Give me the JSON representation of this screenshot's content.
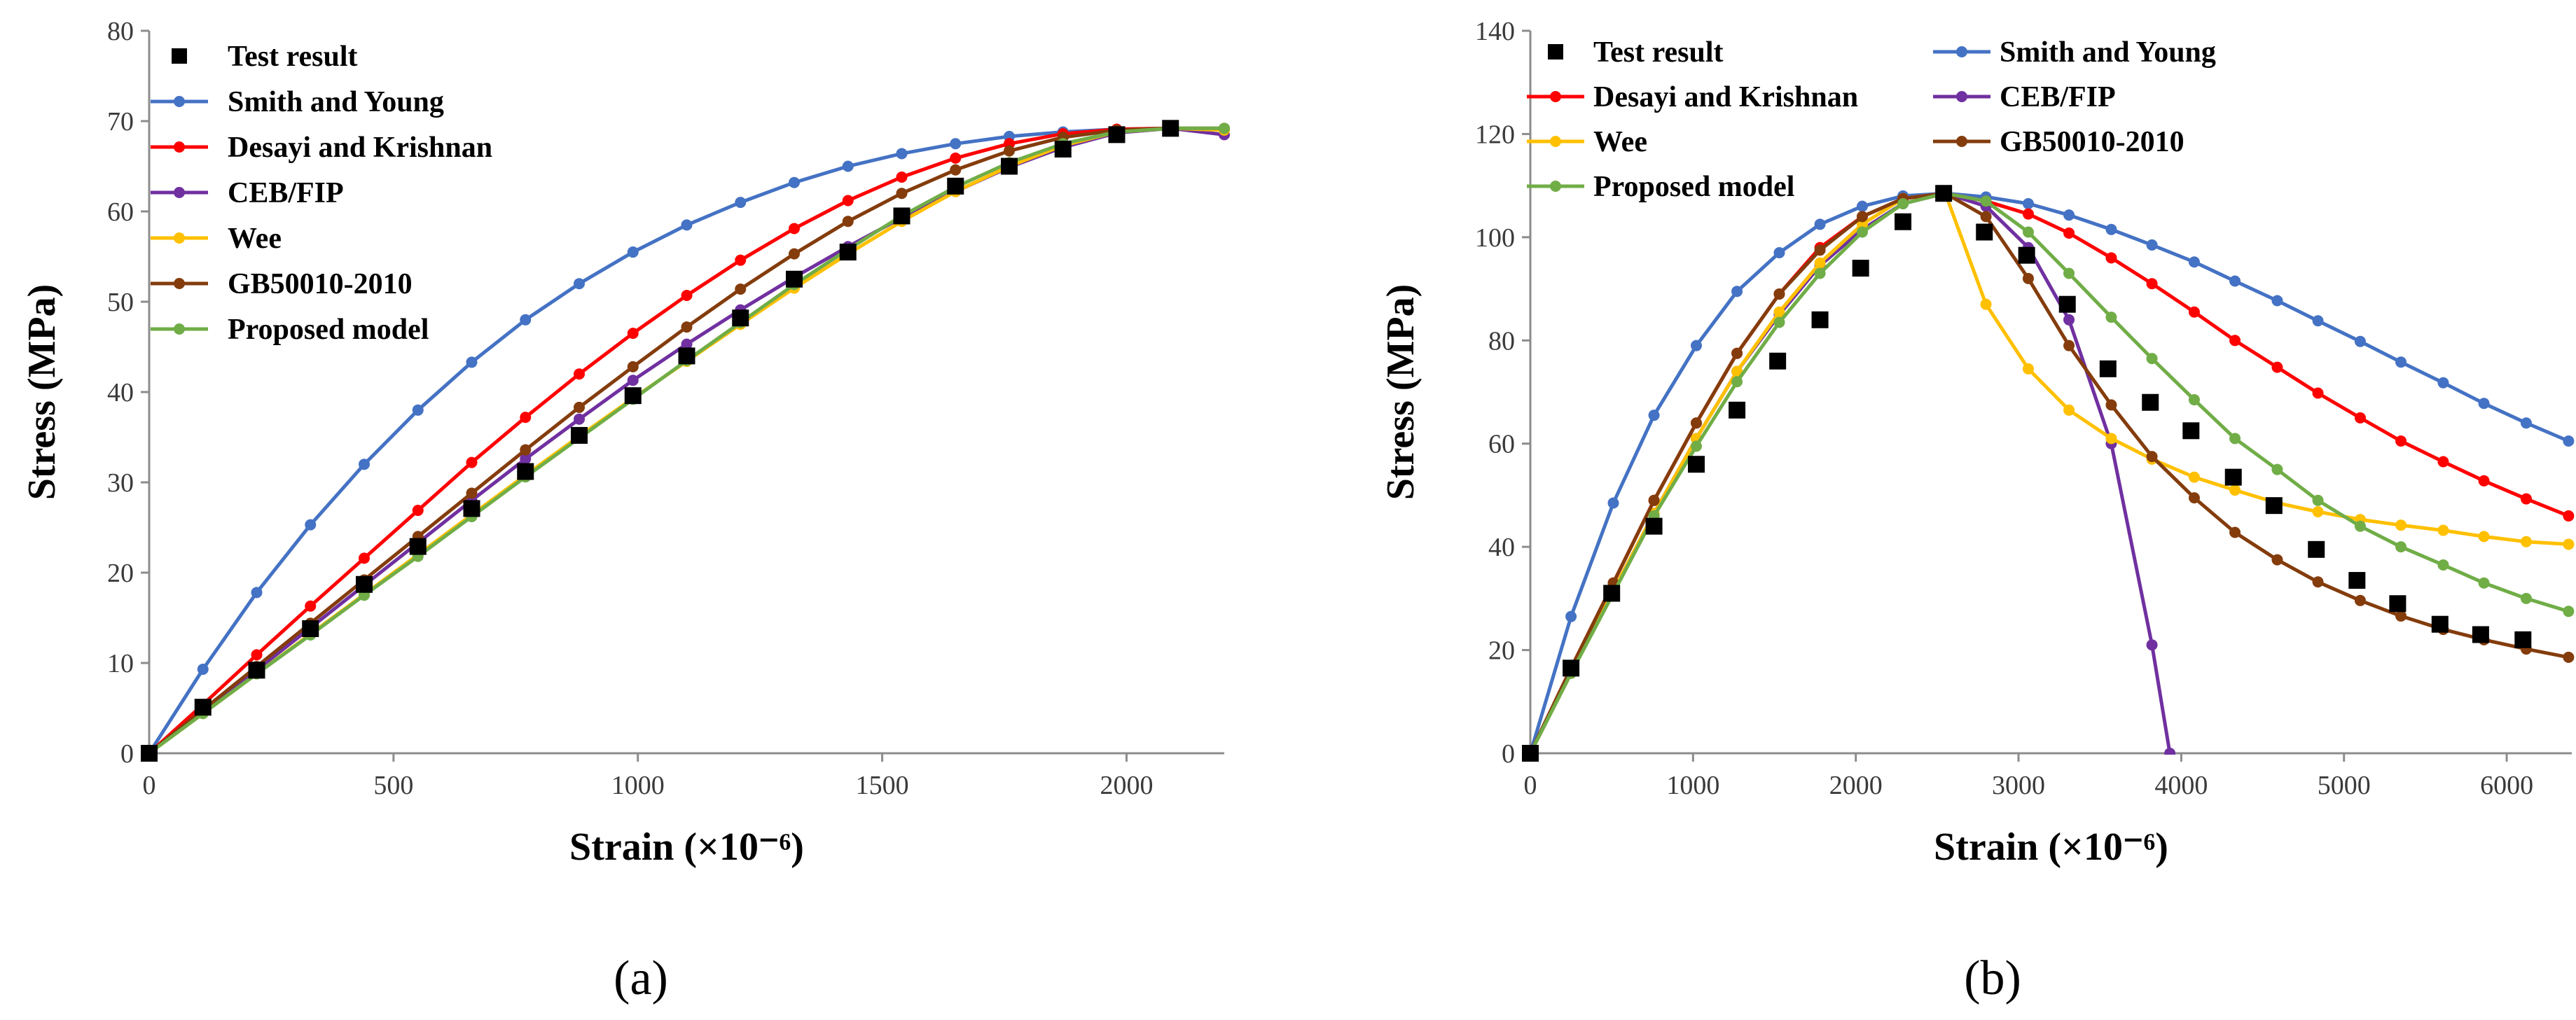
{
  "chart_data": [
    {
      "type": "line",
      "panel_label": "(a)",
      "xlabel": "Strain (×10⁻⁶)",
      "ylabel": "Stress (MPa)",
      "xlim": [
        0,
        2200
      ],
      "ylim": [
        0,
        80
      ],
      "xticks": [
        0,
        500,
        1000,
        1500,
        2000
      ],
      "yticks": [
        0,
        10,
        20,
        30,
        40,
        50,
        60,
        70,
        80
      ],
      "grid": false,
      "legend_position": "top-left",
      "test_result": {
        "name": "Test result",
        "x": [
          0,
          110,
          220,
          330,
          440,
          550,
          660,
          770,
          880,
          990,
          1100,
          1210,
          1320,
          1430,
          1540,
          1650,
          1760,
          1870,
          1980,
          2090
        ],
        "y": [
          0,
          5.1,
          9.2,
          13.8,
          18.7,
          22.9,
          27.1,
          31.2,
          35.2,
          39.6,
          44.0,
          48.2,
          52.5,
          55.5,
          59.5,
          62.8,
          65.0,
          66.9,
          68.5,
          69.2
        ]
      },
      "series": [
        {
          "name": "Smith and Young",
          "color": "#4472c4",
          "x": [
            0,
            110,
            220,
            330,
            440,
            550,
            660,
            770,
            880,
            990,
            1100,
            1210,
            1320,
            1430,
            1540,
            1650,
            1760,
            1870,
            1980,
            2090,
            2200
          ],
          "y": [
            0,
            9.3,
            17.8,
            25.3,
            32.0,
            38.0,
            43.3,
            48.0,
            52.0,
            55.5,
            58.5,
            61.0,
            63.2,
            65.0,
            66.4,
            67.5,
            68.3,
            68.8,
            69.1,
            69.2,
            69.1
          ]
        },
        {
          "name": "Desayi and Krishnan",
          "color": "#ff0000",
          "x": [
            0,
            110,
            220,
            330,
            440,
            550,
            660,
            770,
            880,
            990,
            1100,
            1210,
            1320,
            1430,
            1540,
            1650,
            1760,
            1870,
            1980,
            2090,
            2200
          ],
          "y": [
            0,
            5.4,
            10.9,
            16.3,
            21.6,
            26.9,
            32.2,
            37.2,
            42.0,
            46.5,
            50.7,
            54.6,
            58.1,
            61.2,
            63.8,
            65.9,
            67.5,
            68.6,
            69.1,
            69.2,
            69.1
          ]
        },
        {
          "name": "CEB/FIP",
          "color": "#7030a0",
          "x": [
            0,
            110,
            220,
            330,
            440,
            550,
            660,
            770,
            880,
            990,
            1100,
            1210,
            1320,
            1430,
            1540,
            1650,
            1760,
            1870,
            1980,
            2090,
            2200
          ],
          "y": [
            0,
            4.6,
            9.2,
            13.9,
            18.6,
            23.3,
            28.0,
            32.6,
            37.0,
            41.3,
            45.3,
            49.1,
            52.7,
            56.1,
            59.3,
            62.2,
            64.9,
            67.1,
            68.7,
            69.2,
            68.5
          ]
        },
        {
          "name": "Wee",
          "color": "#ffc000",
          "x": [
            0,
            110,
            220,
            330,
            440,
            550,
            660,
            770,
            880,
            990,
            1100,
            1210,
            1320,
            1430,
            1540,
            1650,
            1760,
            1870,
            1980,
            2090,
            2200
          ],
          "y": [
            0,
            4.4,
            8.8,
            13.2,
            17.6,
            22.0,
            26.4,
            30.8,
            35.1,
            39.3,
            43.4,
            47.5,
            51.5,
            55.3,
            58.9,
            62.2,
            65.0,
            67.3,
            68.8,
            69.2,
            69.0
          ]
        },
        {
          "name": "GB50010-2010",
          "color": "#843c0c",
          "x": [
            0,
            110,
            220,
            330,
            440,
            550,
            660,
            770,
            880,
            990,
            1100,
            1210,
            1320,
            1430,
            1540,
            1650,
            1760,
            1870,
            1980,
            2090,
            2200
          ],
          "y": [
            0,
            4.8,
            9.6,
            14.4,
            19.2,
            24.0,
            28.8,
            33.6,
            38.3,
            42.8,
            47.2,
            51.4,
            55.3,
            58.9,
            62.0,
            64.6,
            66.7,
            68.2,
            69.0,
            69.2,
            69.2
          ]
        },
        {
          "name": "Proposed model",
          "color": "#70ad47",
          "x": [
            0,
            110,
            220,
            330,
            440,
            550,
            660,
            770,
            880,
            990,
            1100,
            1210,
            1320,
            1430,
            1540,
            1650,
            1760,
            1870,
            1980,
            2090,
            2200
          ],
          "y": [
            0,
            4.4,
            8.8,
            13.1,
            17.5,
            21.8,
            26.2,
            30.6,
            34.9,
            39.2,
            43.5,
            47.7,
            51.9,
            55.8,
            59.5,
            62.7,
            65.4,
            67.5,
            68.8,
            69.2,
            69.2
          ]
        }
      ]
    },
    {
      "type": "line",
      "panel_label": "(b)",
      "xlabel": "Strain (×10⁻⁶)",
      "ylabel": "Stress (MPa)",
      "xlim": [
        0,
        6400
      ],
      "ylim": [
        0,
        140
      ],
      "xticks": [
        0,
        1000,
        2000,
        3000,
        4000,
        5000,
        6000
      ],
      "yticks": [
        0,
        20,
        40,
        60,
        80,
        100,
        120,
        140
      ],
      "grid": false,
      "legend_position": "top-left",
      "test_result": {
        "name": "Test result",
        "x": [
          0,
          250,
          500,
          760,
          1020,
          1270,
          1520,
          1780,
          2030,
          2290,
          2540,
          2790,
          3050,
          3300,
          3550,
          3810,
          4060,
          4320,
          4570,
          4830,
          5080,
          5330,
          5590,
          5840,
          6100
        ],
        "y": [
          0,
          16.5,
          31.0,
          44.0,
          56.0,
          66.5,
          76.0,
          84.0,
          94.0,
          103.0,
          108.5,
          101.0,
          96.5,
          87.0,
          74.5,
          68.0,
          62.5,
          53.5,
          48.0,
          39.5,
          33.5,
          29.0,
          25.0,
          23.0,
          22.0
        ]
      },
      "series": [
        {
          "name": "Smith and Young",
          "color": "#4472c4",
          "x": [
            0,
            250,
            510,
            760,
            1020,
            1270,
            1530,
            1780,
            2040,
            2290,
            2550,
            2800,
            3060,
            3310,
            3570,
            3820,
            4080,
            4330,
            4590,
            4840,
            5100,
            5350,
            5610,
            5860,
            6120,
            6380
          ],
          "y": [
            0,
            26.5,
            48.5,
            65.5,
            79.0,
            89.5,
            97.0,
            102.5,
            106.0,
            108.0,
            108.5,
            107.8,
            106.5,
            104.3,
            101.5,
            98.5,
            95.2,
            91.5,
            87.7,
            83.8,
            79.8,
            75.8,
            71.8,
            67.8,
            64.0,
            60.5
          ]
        },
        {
          "name": "Desayi and Krishnan",
          "color": "#ff0000",
          "x": [
            0,
            250,
            510,
            760,
            1020,
            1270,
            1530,
            1780,
            2040,
            2290,
            2550,
            2800,
            3060,
            3310,
            3570,
            3820,
            4080,
            4330,
            4590,
            4840,
            5100,
            5350,
            5610,
            5860,
            6120,
            6380
          ],
          "y": [
            0,
            16.5,
            33.0,
            49.0,
            64.0,
            77.5,
            89.0,
            98.0,
            104.0,
            107.5,
            108.5,
            107.0,
            104.5,
            100.8,
            96.0,
            91.0,
            85.5,
            80.0,
            74.8,
            69.8,
            65.0,
            60.5,
            56.5,
            52.8,
            49.3,
            46.0
          ]
        },
        {
          "name": "CEB/FIP",
          "color": "#7030a0",
          "x": [
            0,
            250,
            510,
            760,
            1020,
            1270,
            1530,
            1780,
            2040,
            2290,
            2550,
            2800,
            3060,
            3310,
            3570,
            3820,
            3930
          ],
          "y": [
            0,
            15.5,
            31.5,
            46.5,
            61.0,
            74.0,
            85.0,
            94.5,
            101.5,
            106.5,
            108.5,
            106.0,
            98.0,
            84.0,
            60.0,
            21.0,
            0
          ]
        },
        {
          "name": "Wee",
          "color": "#ffc000",
          "x": [
            0,
            250,
            510,
            760,
            1020,
            1270,
            1530,
            1780,
            2040,
            2290,
            2550,
            2800,
            3060,
            3310,
            3570,
            3820,
            4080,
            4330,
            4590,
            4840,
            5100,
            5350,
            5610,
            5860,
            6120,
            6380
          ],
          "y": [
            0,
            15.5,
            31.5,
            46.5,
            61.0,
            74.0,
            85.5,
            95.0,
            102.5,
            107.5,
            108.5,
            87.0,
            74.5,
            66.5,
            61.0,
            57.0,
            53.5,
            51.0,
            48.5,
            46.8,
            45.3,
            44.2,
            43.2,
            42.0,
            41.0,
            40.5
          ]
        },
        {
          "name": "GB50010-2010",
          "color": "#843c0c",
          "x": [
            0,
            250,
            510,
            760,
            1020,
            1270,
            1530,
            1780,
            2040,
            2290,
            2550,
            2800,
            3060,
            3310,
            3570,
            3820,
            4080,
            4330,
            4590,
            4840,
            5100,
            5350,
            5610,
            5860,
            6120,
            6380
          ],
          "y": [
            0,
            16.5,
            33.0,
            49.0,
            64.0,
            77.5,
            89.0,
            97.5,
            104.0,
            107.5,
            108.5,
            104.0,
            92.0,
            79.0,
            67.5,
            57.5,
            49.5,
            42.8,
            37.5,
            33.2,
            29.6,
            26.6,
            24.0,
            22.0,
            20.2,
            18.6
          ]
        },
        {
          "name": "Proposed model",
          "color": "#70ad47",
          "x": [
            0,
            250,
            510,
            760,
            1020,
            1270,
            1530,
            1780,
            2040,
            2290,
            2550,
            2800,
            3060,
            3310,
            3570,
            3820,
            4080,
            4330,
            4590,
            4840,
            5100,
            5350,
            5610,
            5860,
            6120,
            6380
          ],
          "y": [
            0,
            15.5,
            31.0,
            46.0,
            59.5,
            72.0,
            83.5,
            93.0,
            101.0,
            106.5,
            108.5,
            107.0,
            101.0,
            93.0,
            84.5,
            76.5,
            68.5,
            61.0,
            55.0,
            49.0,
            44.0,
            40.0,
            36.5,
            33.0,
            30.0,
            27.5
          ]
        }
      ]
    }
  ]
}
